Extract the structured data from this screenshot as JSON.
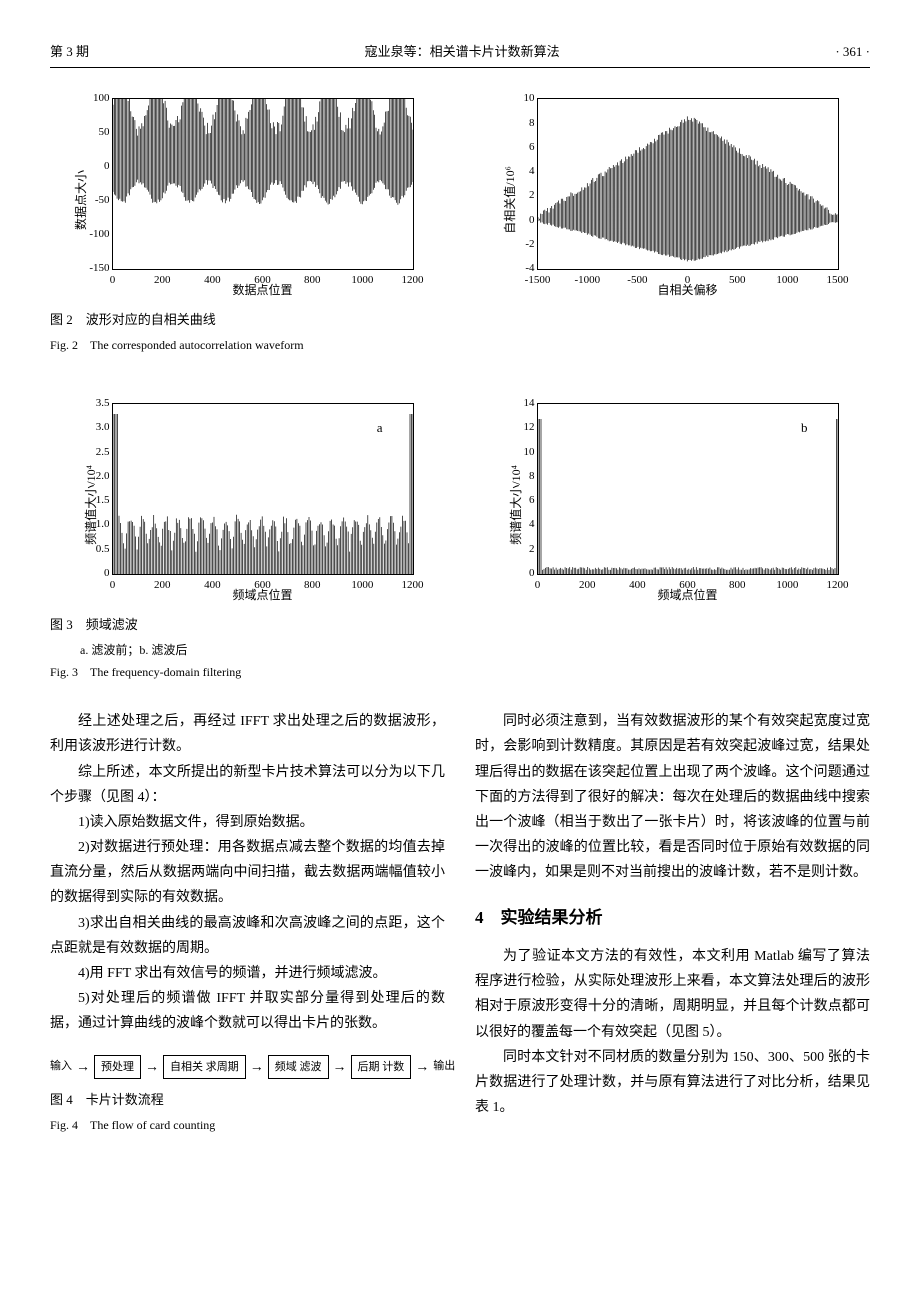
{
  "header": {
    "issue": "第 3 期",
    "running_title": "寇业泉等：相关谱卡片计数新算法",
    "page_num": "· 361 ·"
  },
  "fig2": {
    "caption_cn": "图 2　波形对应的自相关曲线",
    "caption_en": "Fig. 2　The corresponded autocorrelation waveform",
    "left": {
      "ylabel": "数据点大小",
      "xlabel": "数据点位置",
      "ylim": [
        -150,
        100
      ],
      "yticks": [
        -150,
        -100,
        -50,
        0,
        50,
        100
      ],
      "xlim": [
        0,
        1200
      ],
      "xticks": [
        0,
        200,
        400,
        600,
        800,
        1000,
        1200
      ],
      "series_color": "#000000"
    },
    "right": {
      "ylabel": "自相关值/10⁶",
      "xlabel": "自相关偏移",
      "ylim": [
        -4,
        10
      ],
      "yticks": [
        -4,
        -2,
        0,
        2,
        4,
        6,
        8,
        10
      ],
      "xlim": [
        -1500,
        1500
      ],
      "xticks": [
        -1500,
        -1000,
        -500,
        0,
        500,
        1000,
        1500
      ],
      "series_color": "#000000"
    }
  },
  "fig3": {
    "caption_cn": "图 3　频域滤波",
    "sub_caption": "a. 滤波前；b. 滤波后",
    "caption_en": "Fig. 3　The frequency-domain filtering",
    "a": {
      "panel_label": "a",
      "ylabel": "频谱值大小/10⁴",
      "xlabel": "频域点位置",
      "ylim": [
        0,
        3.5
      ],
      "yticks": [
        0,
        0.5,
        1.0,
        1.5,
        2.0,
        2.5,
        3.0,
        3.5
      ],
      "xlim": [
        0,
        1200
      ],
      "xticks": [
        0,
        200,
        400,
        600,
        800,
        1000,
        1200
      ],
      "series_color": "#000000"
    },
    "b": {
      "panel_label": "b",
      "ylabel": "频谱值大小/10⁴",
      "xlabel": "频域点位置",
      "ylim": [
        0,
        14
      ],
      "yticks": [
        0,
        2,
        4,
        6,
        8,
        10,
        12,
        14
      ],
      "xlim": [
        0,
        1200
      ],
      "xticks": [
        0,
        200,
        400,
        600,
        800,
        1000,
        1200
      ],
      "series_color": "#000000"
    }
  },
  "body": {
    "p1": "经上述处理之后，再经过 IFFT 求出处理之后的数据波形，利用该波形进行计数。",
    "p2": "综上所述，本文所提出的新型卡片技术算法可以分为以下几个步骤（见图 4）：",
    "p3": "1)读入原始数据文件，得到原始数据。",
    "p4": "2)对数据进行预处理：用各数据点减去整个数据的均值去掉直流分量，然后从数据两端向中间扫描，截去数据两端幅值较小的数据得到实际的有效数据。",
    "p5": "3)求出自相关曲线的最高波峰和次高波峰之间的点距，这个点距就是有效数据的周期。",
    "p6": "4)用 FFT 求出有效信号的频谱，并进行频域滤波。",
    "p7": "5)对处理后的频谱做 IFFT 并取实部分量得到处理后的数据，通过计算曲线的波峰个数就可以得出卡片的张数。",
    "r1": "同时必须注意到，当有效数据波形的某个有效突起宽度过宽时，会影响到计数精度。其原因是若有效突起波峰过宽，结果处理后得出的数据在该突起位置上出现了两个波峰。这个问题通过下面的方法得到了很好的解决：每次在处理后的数据曲线中搜索出一个波峰（相当于数出了一张卡片）时，将该波峰的位置与前一次得出的波峰的位置比较，看是否同时位于原始有效数据的同一波峰内，如果是则不对当前搜出的波峰计数，若不是则计数。",
    "sec4_title": "4　实验结果分析",
    "r2": "为了验证本文方法的有效性，本文利用 Matlab 编写了算法程序进行检验，从实际处理波形上来看，本文算法处理后的波形相对于原波形变得十分的清晰，周期明显，并且每个计数点都可以很好的覆盖每一个有效突起（见图 5）。",
    "r3": "同时本文针对不同材质的数量分别为 150、300、500 张的卡片数据进行了处理计数，并与原有算法进行了对比分析，结果见表 1。"
  },
  "fig4": {
    "in_label": "输入",
    "out_label": "输出",
    "boxes": [
      "预处理",
      "自相关\n求周期",
      "频域\n滤波",
      "后期\n计数"
    ],
    "caption_cn": "图 4　卡片计数流程",
    "caption_en": "Fig. 4　The flow of card counting"
  }
}
